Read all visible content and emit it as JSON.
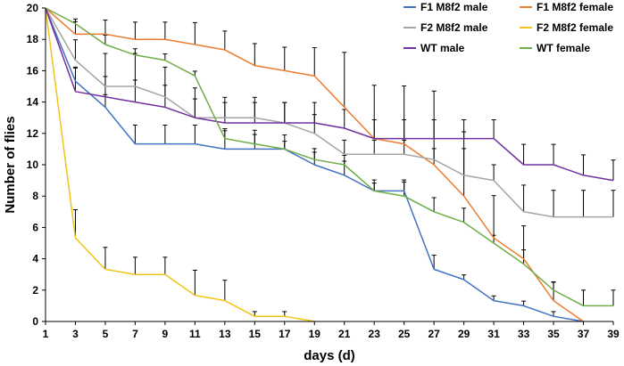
{
  "chart_data": {
    "type": "line",
    "title": "",
    "xlabel": "days (d)",
    "ylabel": "Number of flies",
    "xlim": [
      1,
      39
    ],
    "ylim": [
      0,
      20
    ],
    "x": [
      1,
      3,
      5,
      7,
      9,
      11,
      13,
      15,
      17,
      19,
      21,
      23,
      25,
      27,
      29,
      31,
      33,
      35,
      37,
      39
    ],
    "x_ticks": [
      "1",
      "3",
      "5",
      "7",
      "9",
      "11",
      "13",
      "15",
      "17",
      "19",
      "21",
      "23",
      "25",
      "27",
      "29",
      "31",
      "33",
      "35",
      "37",
      "39"
    ],
    "y_ticks": [
      "0",
      "2",
      "4",
      "6",
      "8",
      "10",
      "12",
      "14",
      "16",
      "18",
      "20"
    ],
    "grid": false,
    "legend_position": "top-right",
    "series": [
      {
        "name": "F1 M8f2 male",
        "color": "#4472C4",
        "values": [
          20,
          15.33,
          13.67,
          11.33,
          11.33,
          11.33,
          11,
          11,
          11,
          10,
          9.33,
          8.33,
          8.33,
          3.33,
          2.67,
          1.33,
          1,
          0.33,
          0,
          null
        ],
        "errors": [
          0,
          0.9,
          0.8,
          1.2,
          1.2,
          1.2,
          1.3,
          1.2,
          0.9,
          0.8,
          0.9,
          0.7,
          0.7,
          0.9,
          0.3,
          0.3,
          0.3,
          0.3,
          0,
          null
        ]
      },
      {
        "name": "F1 M8f2 female",
        "color": "#ED7D31",
        "values": [
          20,
          18.33,
          18.33,
          18,
          18,
          17.67,
          17.33,
          16.33,
          16,
          15.67,
          13.67,
          11.67,
          11.33,
          10,
          8,
          5.33,
          4,
          1.33,
          0,
          null
        ],
        "errors": [
          0,
          0.8,
          0.9,
          1.1,
          1.1,
          1.4,
          1.2,
          1.4,
          1.5,
          1.8,
          3.5,
          3.4,
          3.7,
          4.7,
          4.1,
          2.7,
          2.1,
          1.2,
          0,
          null
        ]
      },
      {
        "name": "F2 M8f2 male",
        "color": "#A5A5A5",
        "values": [
          20,
          16.67,
          15,
          15,
          14.33,
          13,
          13,
          13,
          12.67,
          12,
          10.67,
          10.67,
          10.67,
          10.33,
          9.33,
          9,
          7,
          6.67,
          6.67,
          6.67
        ],
        "errors": [
          0,
          1.3,
          2.1,
          2.1,
          1.9,
          1.9,
          1.3,
          1.3,
          1.3,
          1.2,
          0.9,
          0.9,
          0.9,
          0.7,
          1.7,
          1.0,
          1.7,
          1.7,
          1.7,
          1.7
        ]
      },
      {
        "name": "F2 M8f2 female",
        "color": "#F2C417",
        "values": [
          20,
          5.33,
          3.33,
          3,
          3,
          1.67,
          1.33,
          0.33,
          0.33,
          0,
          null,
          null,
          null,
          null,
          null,
          null,
          null,
          null,
          null,
          null
        ],
        "errors": [
          0,
          1.8,
          1.4,
          1.1,
          1.1,
          1.6,
          1.3,
          0.3,
          0.3,
          0,
          null,
          null,
          null,
          null,
          null,
          null,
          null,
          null,
          null,
          null
        ]
      },
      {
        "name": "WT male",
        "color": "#7030A0",
        "values": [
          20,
          14.67,
          14.33,
          14,
          13.67,
          13,
          12.67,
          12.67,
          12.67,
          12.67,
          12.33,
          11.67,
          11.67,
          11.67,
          11.67,
          11.67,
          10,
          10,
          9.33,
          9
        ],
        "errors": [
          0,
          1.5,
          1.3,
          1.4,
          1.4,
          1.2,
          1.3,
          1.3,
          1.3,
          1.3,
          1.2,
          1.2,
          1.2,
          1.2,
          1.2,
          1.2,
          1.3,
          1.3,
          1.3,
          1.3
        ]
      },
      {
        "name": "WT female",
        "color": "#70AD47",
        "values": [
          20,
          19,
          17.67,
          17,
          16.67,
          15.67,
          11.67,
          11.33,
          11,
          10.33,
          10,
          8.33,
          8,
          7,
          6.33,
          5,
          3.67,
          2,
          1,
          1
        ],
        "errors": [
          0,
          0.3,
          0.6,
          0.4,
          0.4,
          0.3,
          0.5,
          0.6,
          0.5,
          0.7,
          0.6,
          0.5,
          0.9,
          0.9,
          0.9,
          0.5,
          0.9,
          0.5,
          1.0,
          1.0
        ]
      }
    ]
  }
}
